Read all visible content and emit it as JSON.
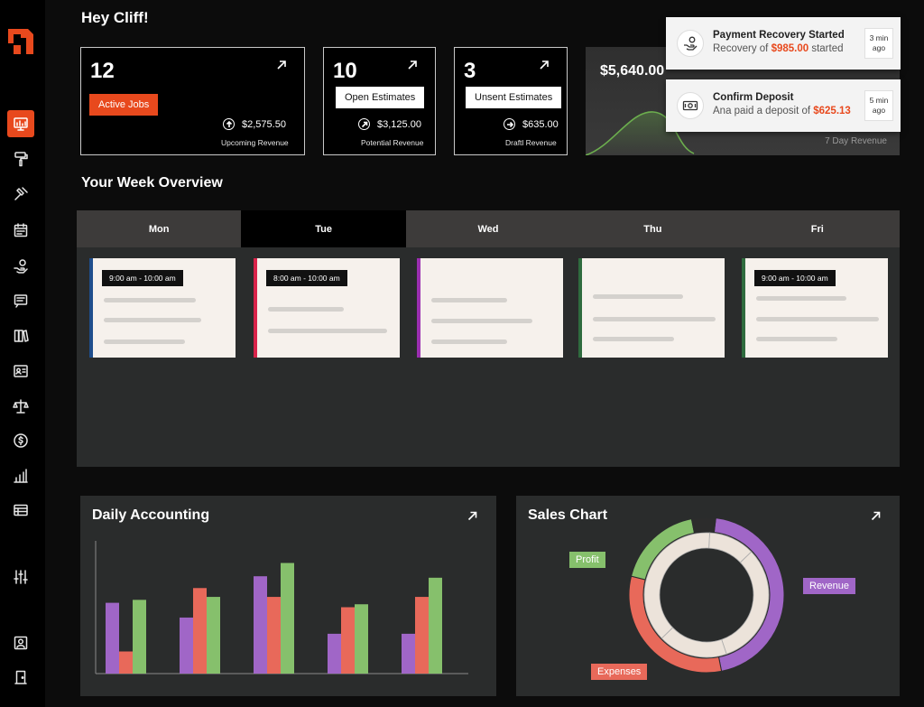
{
  "header": {
    "greeting": "Hey Cliff!"
  },
  "stats": [
    {
      "number": "12",
      "badge": "Active Jobs",
      "amount": "$2,575.50",
      "label": "Upcoming Revenue"
    },
    {
      "number": "10",
      "badge": "Open Estimates",
      "amount": "$3,125.00",
      "label": "Potential Revenue"
    },
    {
      "number": "3",
      "badge": "Unsent Estimates",
      "amount": "$635.00",
      "label": "Draftl Revenue"
    }
  ],
  "seven_day": {
    "amount": "$5,640.00",
    "label": "7 Day Revenue"
  },
  "notifications": [
    {
      "title": "Payment Recovery Started",
      "prefix": "Recovery of ",
      "amount": "$985.00",
      "suffix": " started",
      "time1": "3 min",
      "time2": "ago",
      "icon": "hand-coin-icon"
    },
    {
      "title": "Confirm Deposit",
      "prefix": "Ana paid a deposit of ",
      "amount": "$625.13",
      "suffix": "",
      "time1": "5 min",
      "time2": "ago",
      "icon": "cash-icon"
    }
  ],
  "week": {
    "title": "Your Week Overview",
    "days": [
      "Mon",
      "Tue",
      "Wed",
      "Thu",
      "Fri"
    ],
    "active_day": "Tue",
    "cards": [
      {
        "time": "9:00 am - 10:00 am",
        "color": "#1f4e8c"
      },
      {
        "time": "8:00 am - 10:00 am",
        "color": "#d9234a"
      },
      {
        "time": "",
        "color": "#9b2fb0"
      },
      {
        "time": "",
        "color": "#2f6b3e"
      },
      {
        "time": "9:00 am - 10:00 am",
        "color": "#2f6b3e"
      }
    ]
  },
  "accounting": {
    "title": "Daily Accounting",
    "colors": {
      "a": "#a066c7",
      "b": "#e8695a",
      "c": "#86c06c"
    }
  },
  "sales": {
    "title": "Sales Chart",
    "labels": {
      "profit": "Profit",
      "revenue": "Revenue",
      "expenses": "Expenses"
    },
    "colors": {
      "profit": "#86c06c",
      "revenue": "#a066c7",
      "expenses": "#e8695a",
      "inner": "#ece3da"
    }
  },
  "sidebar": {
    "items": [
      "dashboard-icon",
      "paint-roller-icon",
      "hammer-icon",
      "calendar-icon",
      "hand-coin-icon",
      "message-icon",
      "books-icon",
      "id-card-icon",
      "scale-icon",
      "dollar-icon",
      "bar-chart-icon",
      "table-icon",
      "sliders-icon",
      "user-icon",
      "door-icon"
    ]
  },
  "chart_data": [
    {
      "type": "bar",
      "title": "Daily Accounting",
      "categories": [
        "",
        "",
        "",
        "",
        ""
      ],
      "series": [
        {
          "values": [
            48,
            38,
            66,
            27,
            27
          ]
        },
        {
          "values": [
            15,
            58,
            52,
            45,
            52
          ]
        },
        {
          "values": [
            50,
            52,
            75,
            47,
            65
          ]
        }
      ],
      "ylim": [
        0,
        90
      ]
    },
    {
      "type": "pie",
      "title": "Sales Chart",
      "slices": [
        {
          "name": "Revenue",
          "value": 45
        },
        {
          "name": "Expenses",
          "value": 32
        },
        {
          "name": "Profit",
          "value": 18
        },
        {
          "name": "",
          "value": 5
        }
      ]
    }
  ]
}
